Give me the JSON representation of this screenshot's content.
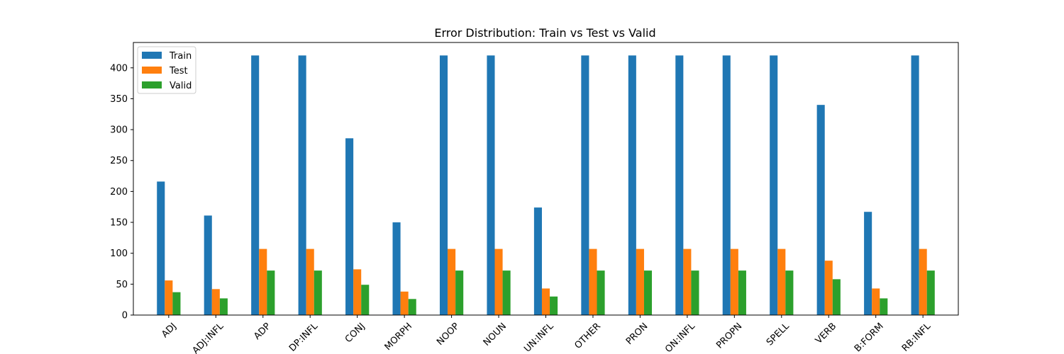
{
  "chart_data": {
    "type": "bar",
    "title": "Error Distribution: Train vs Test vs Valid",
    "xlabel": "",
    "ylabel": "",
    "ylim": [
      0,
      441
    ],
    "yticks": [
      0,
      50,
      100,
      150,
      200,
      250,
      300,
      350,
      400
    ],
    "tick_labels": [
      "0",
      "50",
      "100",
      "150",
      "200",
      "250",
      "300",
      "350",
      "400"
    ],
    "categories": [
      "ADJ",
      "ADJ:INFL",
      "ADP",
      "ADP:INFL",
      "CONJ",
      "MORPH",
      "NOOP",
      "NOUN",
      "NOUN:INFL",
      "OTHER",
      "PRON",
      "PRON:INFL",
      "PROPN",
      "SPELL",
      "VERB",
      "VERB:FORM",
      "VERB:INFL"
    ],
    "category_labels": [
      "ADJ",
      "ADJ:INFL",
      "ADP",
      "DP:INFL",
      "CONJ",
      "MORPH",
      "NOOP",
      "NOUN",
      "UN:INFL",
      "OTHER",
      "PRON",
      "ON:INFL",
      "PROPN",
      "SPELL",
      "VERB",
      "B:FORM",
      "RB:INFL"
    ],
    "series": [
      {
        "name": "Train",
        "color": "#1f77b4",
        "values": [
          216,
          161,
          420,
          420,
          286,
          150,
          420,
          420,
          174,
          420,
          420,
          420,
          420,
          420,
          340,
          167,
          420
        ]
      },
      {
        "name": "Test",
        "color": "#ff7f0e",
        "values": [
          56,
          42,
          107,
          107,
          74,
          38,
          107,
          107,
          43,
          107,
          107,
          107,
          107,
          107,
          88,
          43,
          107
        ]
      },
      {
        "name": "Valid",
        "color": "#2ca02c",
        "values": [
          37,
          27,
          72,
          72,
          49,
          26,
          72,
          72,
          30,
          72,
          72,
          72,
          72,
          72,
          58,
          27,
          72
        ]
      }
    ],
    "legend_position": "top-left",
    "grid": false
  }
}
